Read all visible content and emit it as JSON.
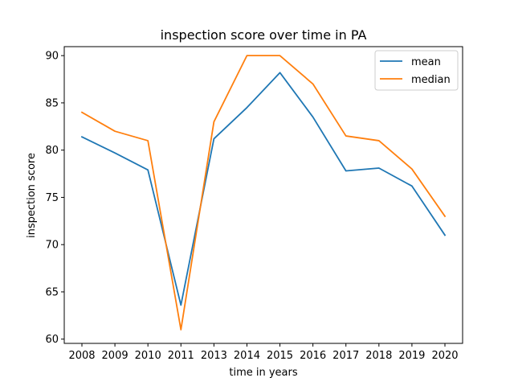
{
  "chart_data": {
    "type": "line",
    "title": "inspection score over time in PA",
    "xlabel": "time in years",
    "ylabel": "inspection score",
    "categories": [
      "2008",
      "2009",
      "2010",
      "2011",
      "2013",
      "2014",
      "2015",
      "2016",
      "2017",
      "2018",
      "2019",
      "2020"
    ],
    "series": [
      {
        "name": "mean",
        "color": "#1f77b4",
        "values": [
          81.4,
          79.7,
          77.9,
          63.6,
          81.2,
          84.5,
          88.2,
          83.5,
          77.8,
          78.1,
          76.2,
          71.0
        ]
      },
      {
        "name": "median",
        "color": "#ff7f0e",
        "values": [
          84.0,
          82.0,
          81.0,
          61.0,
          83.0,
          90.0,
          90.0,
          87.0,
          81.5,
          81.0,
          78.0,
          73.0
        ]
      }
    ],
    "ylim": [
      59.55,
      90.95
    ],
    "yticks": [
      60,
      65,
      70,
      75,
      80,
      85,
      90
    ],
    "grid": false,
    "legend_position": "top-right"
  }
}
